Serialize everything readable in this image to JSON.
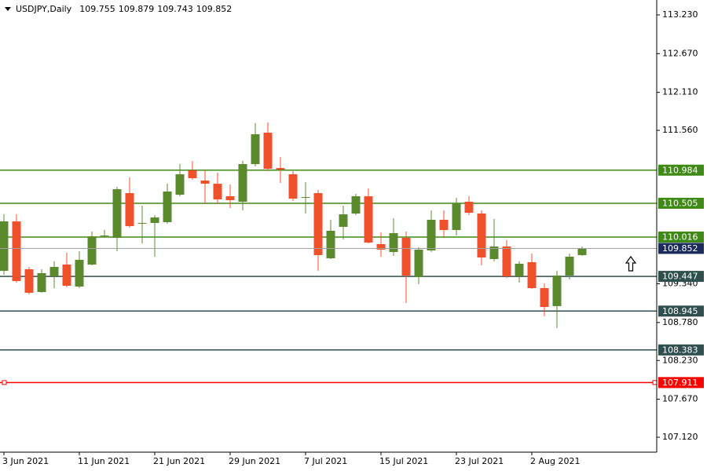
{
  "chart_data": {
    "type": "candlestick",
    "symbol": "USDJPY,Daily",
    "categories": [
      "3 Jun 2021",
      null,
      null,
      null,
      null,
      null,
      "11 Jun 2021",
      null,
      null,
      null,
      null,
      null,
      "21 Jun 2021",
      null,
      null,
      null,
      null,
      null,
      "29 Jun 2021",
      null,
      null,
      null,
      null,
      null,
      "7 Jul 2021",
      null,
      null,
      null,
      null,
      null,
      "15 Jul 2021",
      null,
      null,
      null,
      null,
      null,
      "23 Jul 2021",
      null,
      null,
      null,
      null,
      null,
      "2 Aug 2021",
      null,
      null,
      null,
      null
    ],
    "open": [
      109.528,
      110.243,
      109.55,
      109.221,
      109.448,
      109.618,
      109.3,
      109.618,
      110.027,
      110.005,
      110.652,
      110.209,
      110.22,
      110.232,
      110.629,
      110.981,
      110.834,
      110.788,
      110.607,
      110.527,
      111.072,
      111.526,
      111.015,
      110.925,
      110.584,
      110.652,
      109.709,
      110.164,
      110.357,
      110.607,
      109.914,
      109.8,
      110.005,
      109.437,
      109.823,
      110.266,
      110.118,
      110.527,
      110.357,
      109.698,
      109.88,
      109.448,
      109.653,
      109.278,
      109.017,
      109.459,
      109.755
    ],
    "high": [
      110.345,
      110.345,
      109.584,
      109.55,
      109.664,
      109.789,
      109.812,
      110.095,
      110.118,
      110.743,
      110.879,
      110.47,
      110.334,
      110.788,
      111.072,
      111.118,
      110.981,
      110.947,
      110.777,
      111.118,
      111.663,
      111.674,
      111.174,
      110.97,
      110.811,
      110.697,
      110.266,
      110.47,
      110.641,
      110.72,
      110.084,
      110.289,
      110.095,
      109.868,
      110.402,
      110.402,
      110.584,
      110.607,
      110.402,
      110.277,
      109.971,
      109.664,
      109.777,
      109.346,
      109.528,
      109.777,
      109.879
    ],
    "low": [
      109.471,
      109.357,
      109.187,
      109.21,
      109.278,
      109.289,
      109.278,
      109.607,
      110.005,
      109.812,
      110.152,
      109.925,
      109.732,
      110.209,
      110.607,
      110.845,
      110.493,
      110.493,
      110.436,
      110.402,
      111.038,
      110.97,
      110.8,
      110.538,
      110.357,
      109.528,
      109.698,
      109.982,
      110.334,
      109.925,
      109.732,
      109.743,
      109.062,
      109.335,
      109.8,
      110.016,
      110.039,
      110.334,
      109.607,
      109.664,
      109.425,
      109.357,
      109.266,
      108.869,
      108.699,
      109.403,
      109.743
    ],
    "close": [
      110.243,
      109.38,
      109.21,
      109.494,
      109.584,
      109.312,
      109.687,
      110.027,
      110.039,
      110.709,
      110.175,
      110.22,
      110.3,
      110.675,
      110.925,
      110.868,
      110.788,
      110.561,
      110.55,
      111.072,
      111.504,
      111.004,
      110.993,
      110.572,
      110.595,
      109.755,
      110.107,
      110.345,
      110.607,
      109.936,
      109.834,
      110.073,
      109.459,
      109.834,
      110.266,
      110.118,
      110.504,
      110.368,
      109.721,
      109.88,
      109.448,
      109.63,
      109.278,
      109.005,
      109.459,
      109.732,
      109.852
    ],
    "up_color": "#5a8a2d",
    "down_color": "#f0502a",
    "ylim": [
      106.904,
      113.446
    ],
    "yticks": [
      {
        "value": 113.23,
        "label": "113.230"
      },
      {
        "value": 112.67,
        "label": "112.670"
      },
      {
        "value": 112.11,
        "label": "112.110"
      },
      {
        "value": 111.56,
        "label": "111.560"
      },
      {
        "value": 109.34,
        "label": "109.340"
      },
      {
        "value": 108.78,
        "label": "108.780"
      },
      {
        "value": 108.23,
        "label": "108.230"
      },
      {
        "value": 107.67,
        "label": "107.670"
      },
      {
        "value": 107.12,
        "label": "107.120"
      }
    ],
    "levels": [
      {
        "value": 110.984,
        "color": "#3f8a16"
      },
      {
        "value": 110.505,
        "color": "#3f8a16"
      },
      {
        "value": 110.016,
        "color": "#3f8a16"
      },
      {
        "value": 109.447,
        "color": "#2f4f4f"
      },
      {
        "value": 108.945,
        "color": "#2f4f4f"
      },
      {
        "value": 108.383,
        "color": "#2f4f4f"
      },
      {
        "value": 107.911,
        "color": "#ff0000"
      }
    ],
    "price_line_color": "#a0a0a0",
    "price_label_color": "#1c2a5c"
  }
}
